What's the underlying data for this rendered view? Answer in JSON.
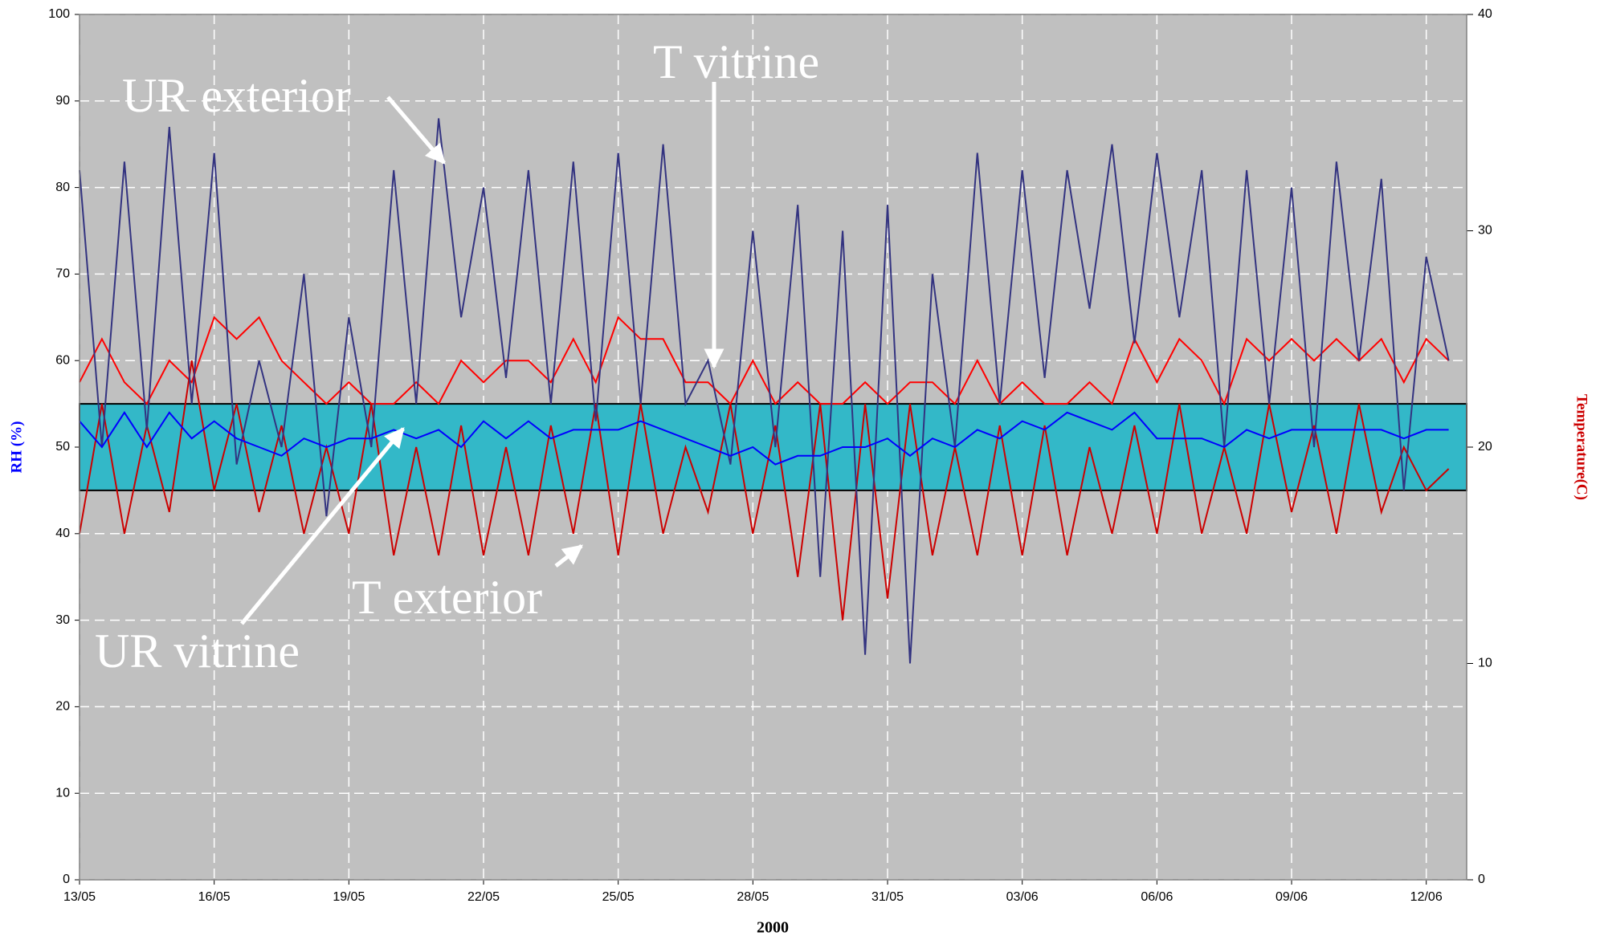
{
  "chart_data": {
    "type": "line",
    "x_label": "2000",
    "y_label": "RH (%)",
    "y2_label": "Temperature(C)",
    "annotations": [
      "UR exterior",
      "T vitrine",
      "T exterior",
      "UR vitrine"
    ],
    "background": "#c0c0c0",
    "grid": true,
    "band": {
      "range": [
        45,
        55
      ],
      "color": "#33b8c8"
    },
    "xlim": [
      0,
      30.9
    ],
    "xticks": [
      {
        "value": 0,
        "label": "13/05"
      },
      {
        "value": 3,
        "label": "16/05"
      },
      {
        "value": 6,
        "label": "19/05"
      },
      {
        "value": 9,
        "label": "22/05"
      },
      {
        "value": 12,
        "label": "25/05"
      },
      {
        "value": 15,
        "label": "28/05"
      },
      {
        "value": 18,
        "label": "31/05"
      },
      {
        "value": 21,
        "label": "03/06"
      },
      {
        "value": 24,
        "label": "06/06"
      },
      {
        "value": 27,
        "label": "09/06"
      },
      {
        "value": 30,
        "label": "12/06"
      }
    ],
    "ylim": [
      0,
      100
    ],
    "yticks": [
      0,
      10,
      20,
      30,
      40,
      50,
      60,
      70,
      80,
      90,
      100
    ],
    "y2lim": [
      0,
      40
    ],
    "y2ticks": [
      0,
      10,
      20,
      30,
      40
    ],
    "x": [
      0,
      0.5,
      1,
      1.5,
      2,
      2.5,
      3,
      3.5,
      4,
      4.5,
      5,
      5.5,
      6,
      6.5,
      7,
      7.5,
      8,
      8.5,
      9,
      9.5,
      10,
      10.5,
      11,
      11.5,
      12,
      12.5,
      13,
      13.5,
      14,
      14.5,
      15,
      15.5,
      16,
      16.5,
      17,
      17.5,
      18,
      18.5,
      19,
      19.5,
      20,
      20.5,
      21,
      21.5,
      22,
      22.5,
      23,
      23.5,
      24,
      24.5,
      25,
      25.5,
      26,
      26.5,
      27,
      27.5,
      28,
      28.5,
      29,
      29.5,
      30,
      30.5
    ],
    "series": [
      {
        "name": "UR exterior",
        "color": "#333380",
        "values": [
          82,
          50,
          83,
          52,
          87,
          55,
          84,
          48,
          60,
          50,
          70,
          42,
          65,
          50,
          82,
          55,
          88,
          65,
          80,
          58,
          82,
          55,
          83,
          53,
          84,
          55,
          85,
          55,
          60,
          48,
          75,
          50,
          78,
          35,
          75,
          26,
          78,
          25,
          70,
          50,
          84,
          55,
          82,
          58,
          82,
          66,
          85,
          62,
          84,
          65,
          82,
          50,
          82,
          55,
          80,
          50,
          83,
          60,
          81,
          45,
          72,
          60
        ]
      },
      {
        "name": "UR vitrine",
        "color": "#0000ff",
        "values": [
          53,
          50,
          54,
          50,
          54,
          51,
          53,
          51,
          50,
          49,
          51,
          50,
          51,
          51,
          52,
          51,
          52,
          50,
          53,
          51,
          53,
          51,
          52,
          52,
          52,
          53,
          52,
          51,
          50,
          49,
          50,
          48,
          49,
          49,
          50,
          50,
          51,
          49,
          51,
          50,
          52,
          51,
          53,
          52,
          54,
          53,
          52,
          54,
          51,
          51,
          51,
          50,
          52,
          51,
          52,
          52,
          52,
          52,
          52,
          51,
          52,
          52
        ]
      },
      {
        "name": "T vitrine",
        "color": "#ff0000",
        "axis": "y2",
        "values": [
          23,
          25,
          23,
          22,
          24,
          23,
          26,
          25,
          26,
          24,
          23,
          22,
          23,
          22,
          22,
          23,
          22,
          24,
          23,
          24,
          24,
          23,
          25,
          23,
          26,
          25,
          25,
          23,
          23,
          22,
          24,
          22,
          23,
          22,
          22,
          23,
          22,
          23,
          23,
          22,
          24,
          22,
          23,
          22,
          22,
          23,
          22,
          25,
          23,
          25,
          24,
          22,
          25,
          24,
          25,
          24,
          25,
          24,
          25,
          23,
          25,
          24
        ]
      },
      {
        "name": "T exterior",
        "color": "#cc0000",
        "axis": "y2",
        "values": [
          16,
          22,
          16,
          21,
          17,
          24,
          18,
          22,
          17,
          21,
          16,
          20,
          16,
          22,
          15,
          20,
          15,
          21,
          15,
          20,
          15,
          21,
          16,
          22,
          15,
          22,
          16,
          20,
          17,
          22,
          16,
          21,
          14,
          22,
          12,
          22,
          13,
          22,
          15,
          20,
          15,
          21,
          15,
          21,
          15,
          20,
          16,
          21,
          16,
          22,
          16,
          20,
          16,
          22,
          17,
          21,
          16,
          22,
          17,
          20,
          18,
          19
        ]
      }
    ]
  }
}
